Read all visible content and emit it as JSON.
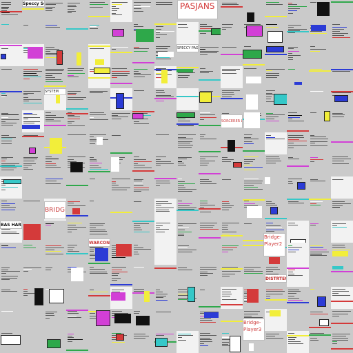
{
  "title": "Speccy Serif Demo",
  "labels": {
    "pasjans": "PASJANS",
    "bridge": "BRIDGE",
    "sorcerer_lord": "SORCERER LORD",
    "warcone": "WARCONE",
    "bridge_player_2_top": "Bridge-Player2",
    "bridge_player_3_bottom": "Bridge-Player3",
    "distrtech": "DISTRTECH",
    "speccy_pages": "SPECCY PAGES",
    "system": "SYSTEM",
    "bas_hard": "BAS HARD"
  },
  "colors": {
    "background": "#c8c8c8",
    "accent_red": "#d43a3a",
    "accent_blue": "#2b3bd6",
    "accent_yellow": "#f2ee3a",
    "accent_magenta": "#d23fd6",
    "accent_green": "#2ea84a",
    "accent_cyan": "#35c8c8"
  }
}
